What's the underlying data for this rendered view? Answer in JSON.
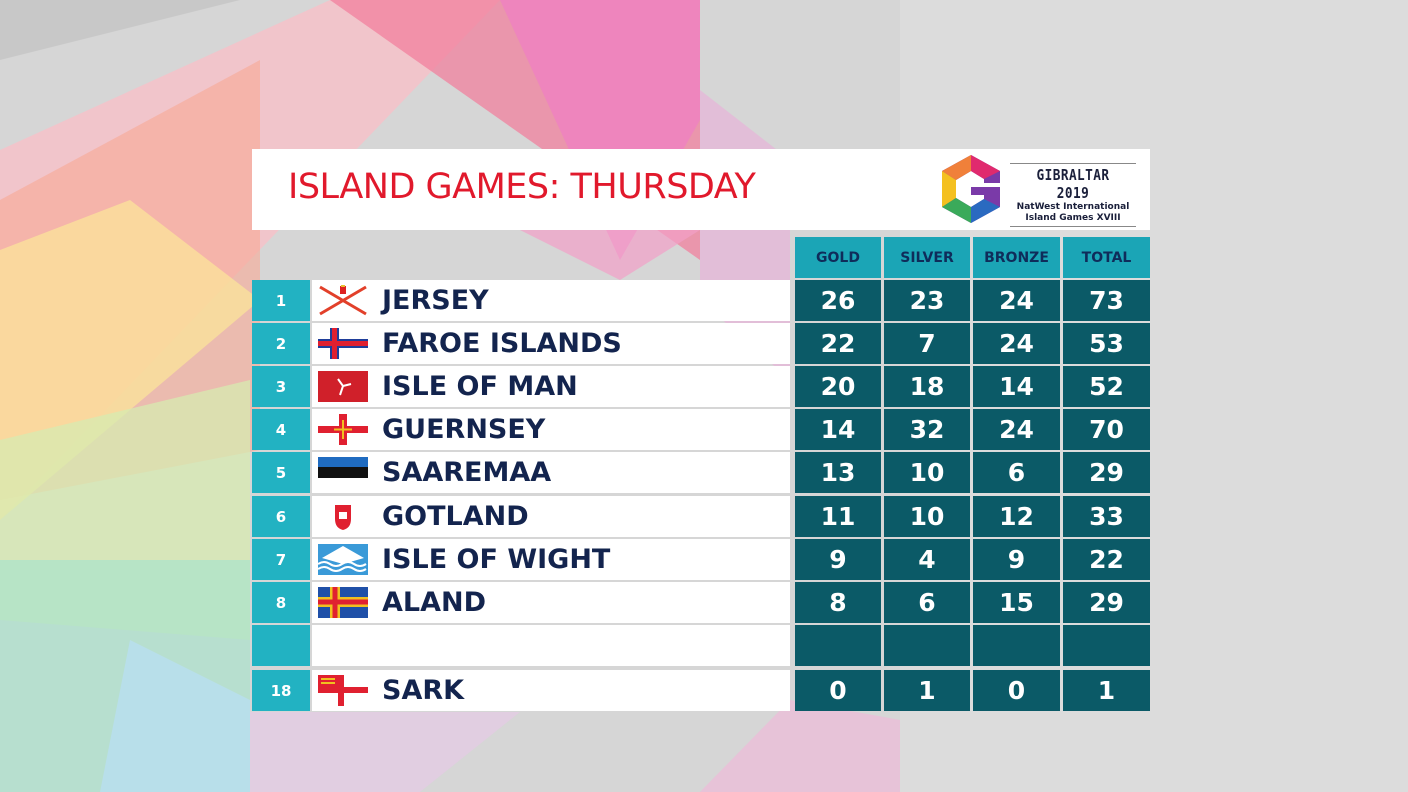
{
  "title": "ISLAND GAMES: THURSDAY",
  "logo": {
    "line1": "GIBRALTAR 2019",
    "line2": "NatWest International",
    "line3": "Island Games XVIII"
  },
  "columns": [
    "GOLD",
    "SILVER",
    "BRONZE",
    "TOTAL"
  ],
  "colors": {
    "title": "#e1192c",
    "header": "#1ba5b6",
    "cell": "#0b5a67",
    "rank": "#22b2c2",
    "name": "#13244e"
  },
  "rows": [
    {
      "rank": "1",
      "country": "JERSEY",
      "flag": "jersey-flag",
      "gold": "26",
      "silver": "23",
      "bronze": "24",
      "total": "73"
    },
    {
      "rank": "2",
      "country": "FAROE ISLANDS",
      "flag": "faroe-flag",
      "gold": "22",
      "silver": "7",
      "bronze": "24",
      "total": "53"
    },
    {
      "rank": "3",
      "country": "ISLE OF MAN",
      "flag": "isle-of-man-flag",
      "gold": "20",
      "silver": "18",
      "bronze": "14",
      "total": "52"
    },
    {
      "rank": "4",
      "country": "GUERNSEY",
      "flag": "guernsey-flag",
      "gold": "14",
      "silver": "32",
      "bronze": "24",
      "total": "70"
    },
    {
      "rank": "5",
      "country": "SAAREMAA",
      "flag": "saaremaa-flag",
      "gold": "13",
      "silver": "10",
      "bronze": "6",
      "total": "29"
    },
    {
      "rank": "6",
      "country": "GOTLAND",
      "flag": "gotland-flag",
      "gold": "11",
      "silver": "10",
      "bronze": "12",
      "total": "33"
    },
    {
      "rank": "7",
      "country": "ISLE OF WIGHT",
      "flag": "isle-of-wight-flag",
      "gold": "9",
      "silver": "4",
      "bronze": "9",
      "total": "22"
    },
    {
      "rank": "8",
      "country": "ALAND",
      "flag": "aland-flag",
      "gold": "8",
      "silver": "6",
      "bronze": "15",
      "total": "29"
    },
    {
      "rank": "",
      "country": "",
      "flag": "",
      "gold": "",
      "silver": "",
      "bronze": "",
      "total": ""
    },
    {
      "rank": "18",
      "country": "SARK",
      "flag": "sark-flag",
      "gold": "0",
      "silver": "1",
      "bronze": "0",
      "total": "1"
    }
  ]
}
